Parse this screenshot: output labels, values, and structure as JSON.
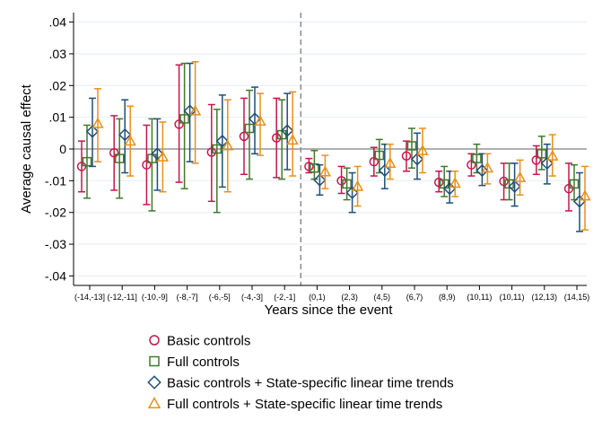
{
  "chart_data": {
    "type": "scatter",
    "title": "",
    "xlabel": "Years since the event",
    "ylabel": "Average causal effect",
    "ylim": [
      -0.043,
      0.043
    ],
    "y_ticks": [
      {
        "value": 0.04,
        "label": ".04"
      },
      {
        "value": 0.03,
        "label": ".03"
      },
      {
        "value": 0.02,
        "label": ".02"
      },
      {
        "value": 0.01,
        "label": ".01"
      },
      {
        "value": 0,
        "label": "0"
      },
      {
        "value": -0.01,
        "label": "-.01"
      },
      {
        "value": -0.02,
        "label": "-.02"
      },
      {
        "value": -0.03,
        "label": "-.03"
      },
      {
        "value": -0.04,
        "label": "-.04"
      }
    ],
    "categories": [
      "(-14,-13]",
      "(-12,-11]",
      "(-10,-9]",
      "(-8,-7]",
      "(-6,-5]",
      "(-4,-3]",
      "(-2,-1]",
      "(0,1)",
      "(2,3)",
      "(4,5)",
      "(6,7)",
      "(8,9)",
      "(10,11)",
      "(10,11)",
      "(12,13)",
      "(14,15)"
    ],
    "event_line_after_index": 6,
    "legend_position": "bottom",
    "grid": "horizontal",
    "colors": {
      "basic": "#c5164d",
      "full": "#3f7a2a",
      "basic_trends": "#1f4e79",
      "full_trends": "#e8901a",
      "zero_line": "#7f7f7f",
      "event_line": "#8c8c8c",
      "grid": "#e6eef4"
    },
    "series": [
      {
        "name": "Basic controls",
        "key": "basic",
        "marker": "circle",
        "values": [
          -0.0055,
          -0.0012,
          -0.005,
          0.0078,
          -0.001,
          0.004,
          0.0035,
          -0.0055,
          -0.01,
          -0.004,
          -0.0022,
          -0.0105,
          -0.005,
          -0.0102,
          -0.0035,
          -0.0125
        ],
        "lower": [
          -0.0135,
          -0.013,
          -0.0175,
          -0.0105,
          -0.0165,
          -0.008,
          -0.009,
          -0.0075,
          -0.014,
          -0.0085,
          -0.007,
          -0.0135,
          -0.0085,
          -0.016,
          -0.008,
          -0.0195
        ],
        "upper": [
          0.0025,
          0.0105,
          0.0075,
          0.0265,
          0.014,
          0.016,
          0.016,
          -0.003,
          -0.0055,
          0.0005,
          0.0025,
          -0.007,
          -0.0015,
          -0.0045,
          0.001,
          -0.0045
        ]
      },
      {
        "name": "Full controls",
        "key": "full",
        "marker": "square",
        "values": [
          -0.004,
          -0.003,
          -0.003,
          0.0095,
          0.0,
          0.0065,
          0.0045,
          -0.006,
          -0.011,
          -0.002,
          0.001,
          -0.011,
          -0.003,
          -0.011,
          -0.0015,
          -0.011
        ],
        "lower": [
          -0.0155,
          -0.0155,
          -0.0195,
          -0.0125,
          -0.02,
          -0.0095,
          -0.0095,
          -0.0095,
          -0.016,
          -0.0075,
          -0.006,
          -0.015,
          -0.0075,
          -0.016,
          -0.0065,
          -0.016
        ],
        "upper": [
          0.0075,
          0.0095,
          0.0095,
          0.027,
          0.0125,
          0.0185,
          0.0155,
          -0.0005,
          -0.006,
          0.003,
          0.0065,
          -0.0055,
          0.0015,
          -0.0045,
          0.004,
          -0.005
        ]
      },
      {
        "name": "Basic controls  + State-specific linear time trends",
        "key": "basic_trends",
        "marker": "diamond",
        "values": [
          0.0055,
          0.0045,
          -0.0015,
          0.012,
          0.0025,
          0.0095,
          0.0058,
          -0.0098,
          -0.0138,
          -0.0068,
          -0.0032,
          -0.0125,
          -0.0068,
          -0.0118,
          -0.0045,
          -0.0165
        ],
        "lower": [
          -0.0055,
          -0.0075,
          -0.013,
          -0.004,
          -0.012,
          -0.0015,
          -0.0065,
          -0.0145,
          -0.02,
          -0.0125,
          -0.0095,
          -0.017,
          -0.0115,
          -0.018,
          -0.011,
          -0.026
        ],
        "upper": [
          0.016,
          0.0155,
          0.0095,
          0.027,
          0.017,
          0.0195,
          0.0175,
          -0.005,
          -0.0075,
          0.0015,
          0.005,
          -0.007,
          -0.0015,
          -0.0045,
          0.0015,
          -0.0075
        ]
      },
      {
        "name": "Full controls + State-specific linear time trends",
        "key": "full_trends",
        "marker": "triangle",
        "values": [
          0.008,
          0.0025,
          -0.0025,
          0.012,
          0.001,
          0.0088,
          0.0028,
          -0.0072,
          -0.0118,
          -0.0045,
          -0.0005,
          -0.0108,
          -0.006,
          -0.009,
          -0.0022,
          -0.0148
        ],
        "lower": [
          -0.004,
          -0.0085,
          -0.0135,
          -0.0045,
          -0.0135,
          -0.002,
          -0.0085,
          -0.0125,
          -0.018,
          -0.0095,
          -0.0075,
          -0.015,
          -0.011,
          -0.0145,
          -0.0085,
          -0.0255
        ],
        "upper": [
          0.019,
          0.0135,
          0.0085,
          0.0275,
          0.0155,
          0.0175,
          0.018,
          -0.002,
          -0.0055,
          0.0015,
          0.0065,
          -0.007,
          -0.0015,
          -0.0035,
          0.0045,
          -0.0055
        ]
      }
    ]
  }
}
